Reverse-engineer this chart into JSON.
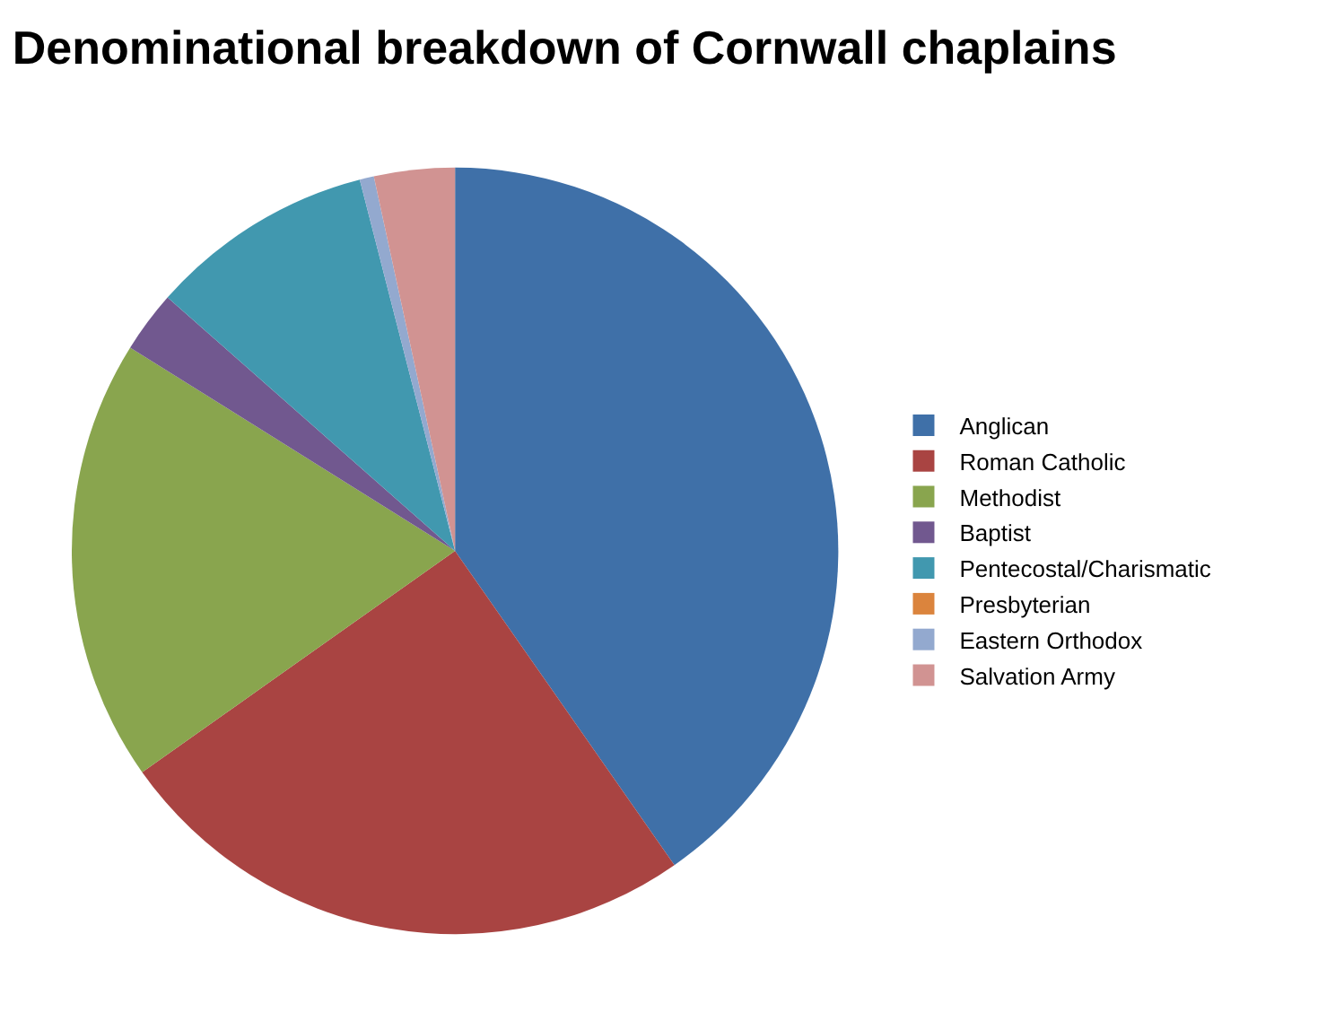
{
  "chart_data": {
    "type": "pie",
    "title": "Denominational breakdown of Cornwall chaplains",
    "categories": [
      "Anglican",
      "Roman Catholic",
      "Methodist",
      "Baptist",
      "Pentecostal/Charismatic",
      "Presbyterian",
      "Eastern Orthodox",
      "Salvation Army"
    ],
    "values": [
      40.3,
      24.9,
      18.7,
      2.6,
      9.5,
      0,
      0.6,
      3.4
    ],
    "colors": [
      "#3f70a8",
      "#a94442",
      "#89a54e",
      "#71588f",
      "#4198af",
      "#db843d",
      "#93a9cf",
      "#d19392"
    ],
    "legend": "right"
  }
}
